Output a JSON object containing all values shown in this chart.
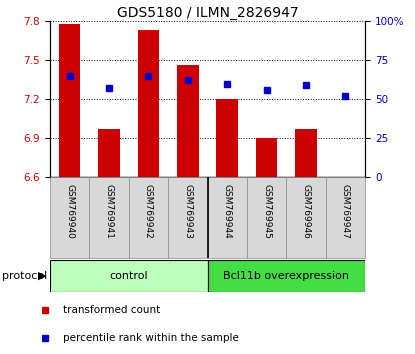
{
  "title": "GDS5180 / ILMN_2826947",
  "samples": [
    "GSM769940",
    "GSM769941",
    "GSM769942",
    "GSM769943",
    "GSM769944",
    "GSM769945",
    "GSM769946",
    "GSM769947"
  ],
  "transformed_counts": [
    7.78,
    6.97,
    7.73,
    7.46,
    7.2,
    6.9,
    6.97,
    6.6
  ],
  "percentile_ranks": [
    65,
    57,
    65,
    62,
    60,
    56,
    59,
    52
  ],
  "ylim_left": [
    6.6,
    7.8
  ],
  "ylim_right": [
    0,
    100
  ],
  "yticks_left": [
    6.6,
    6.9,
    7.2,
    7.5,
    7.8
  ],
  "yticks_right": [
    0,
    25,
    50,
    75,
    100
  ],
  "bar_color": "#cc0000",
  "dot_color": "#0000cc",
  "bar_bottom": 6.6,
  "groups": [
    {
      "label": "control",
      "start": 0,
      "end": 4,
      "color": "#bbffbb"
    },
    {
      "label": "Bcl11b overexpression",
      "start": 4,
      "end": 8,
      "color": "#44dd44"
    }
  ],
  "protocol_label": "protocol",
  "legend_bar_label": "transformed count",
  "legend_dot_label": "percentile rank within the sample",
  "bg_color": "#ffffff",
  "title_fontsize": 10,
  "tick_fontsize": 7.5,
  "sample_fontsize": 6.5,
  "group_fontsize": 8,
  "legend_fontsize": 7.5
}
